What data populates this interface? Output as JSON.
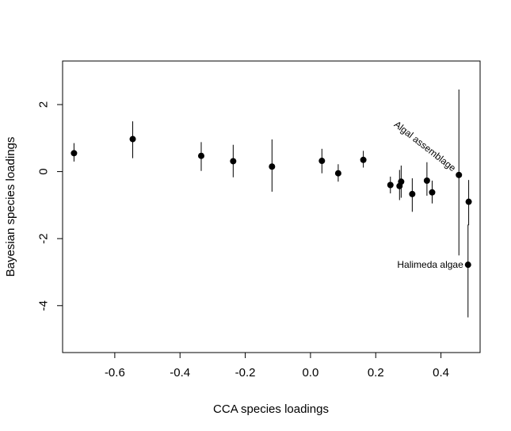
{
  "chart_data": {
    "type": "scatter",
    "xlabel": "CCA species loadings",
    "ylabel": "Bayesian species loadings",
    "xlim": [
      -0.76,
      0.52
    ],
    "ylim": [
      -5.4,
      3.3
    ],
    "xticks": [
      -0.6,
      -0.4,
      -0.2,
      0.0,
      0.2,
      0.4
    ],
    "xtick_labels": [
      "-0.6",
      "-0.4",
      "-0.2",
      "0.0",
      "0.2",
      "0.4"
    ],
    "yticks": [
      -4,
      -2,
      0,
      2
    ],
    "ytick_labels": [
      "-4",
      "-2",
      "0",
      "2"
    ],
    "grid": false,
    "points": [
      {
        "x": -0.725,
        "y": 0.55,
        "lo": 0.3,
        "hi": 0.85
      },
      {
        "x": -0.545,
        "y": 0.97,
        "lo": 0.4,
        "hi": 1.5
      },
      {
        "x": -0.335,
        "y": 0.47,
        "lo": 0.02,
        "hi": 0.88
      },
      {
        "x": -0.237,
        "y": 0.31,
        "lo": -0.17,
        "hi": 0.8
      },
      {
        "x": -0.118,
        "y": 0.15,
        "lo": -0.6,
        "hi": 0.96
      },
      {
        "x": 0.035,
        "y": 0.32,
        "lo": -0.05,
        "hi": 0.68
      },
      {
        "x": 0.085,
        "y": -0.05,
        "lo": -0.3,
        "hi": 0.22
      },
      {
        "x": 0.162,
        "y": 0.35,
        "lo": 0.12,
        "hi": 0.62
      },
      {
        "x": 0.245,
        "y": -0.4,
        "lo": -0.65,
        "hi": -0.15
      },
      {
        "x": 0.273,
        "y": -0.43,
        "lo": -0.85,
        "hi": 0.05
      },
      {
        "x": 0.278,
        "y": -0.3,
        "lo": -0.78,
        "hi": 0.18
      },
      {
        "x": 0.312,
        "y": -0.67,
        "lo": -1.2,
        "hi": -0.2
      },
      {
        "x": 0.357,
        "y": -0.27,
        "lo": -0.72,
        "hi": 0.28
      },
      {
        "x": 0.373,
        "y": -0.62,
        "lo": -0.95,
        "hi": -0.27
      },
      {
        "x": 0.455,
        "y": -0.1,
        "lo": -2.5,
        "hi": 2.45
      },
      {
        "x": 0.485,
        "y": -0.9,
        "lo": -1.6,
        "hi": -0.25
      },
      {
        "x": 0.483,
        "y": -2.78,
        "lo": -4.35,
        "hi": -1.58
      }
    ],
    "annotations": [
      {
        "text": "Algal assemblage",
        "x": 0.455,
        "y": -0.1,
        "rotation": 38
      },
      {
        "text": "Halimeda algae",
        "x": 0.483,
        "y": -2.78,
        "rotation": 0
      }
    ]
  }
}
